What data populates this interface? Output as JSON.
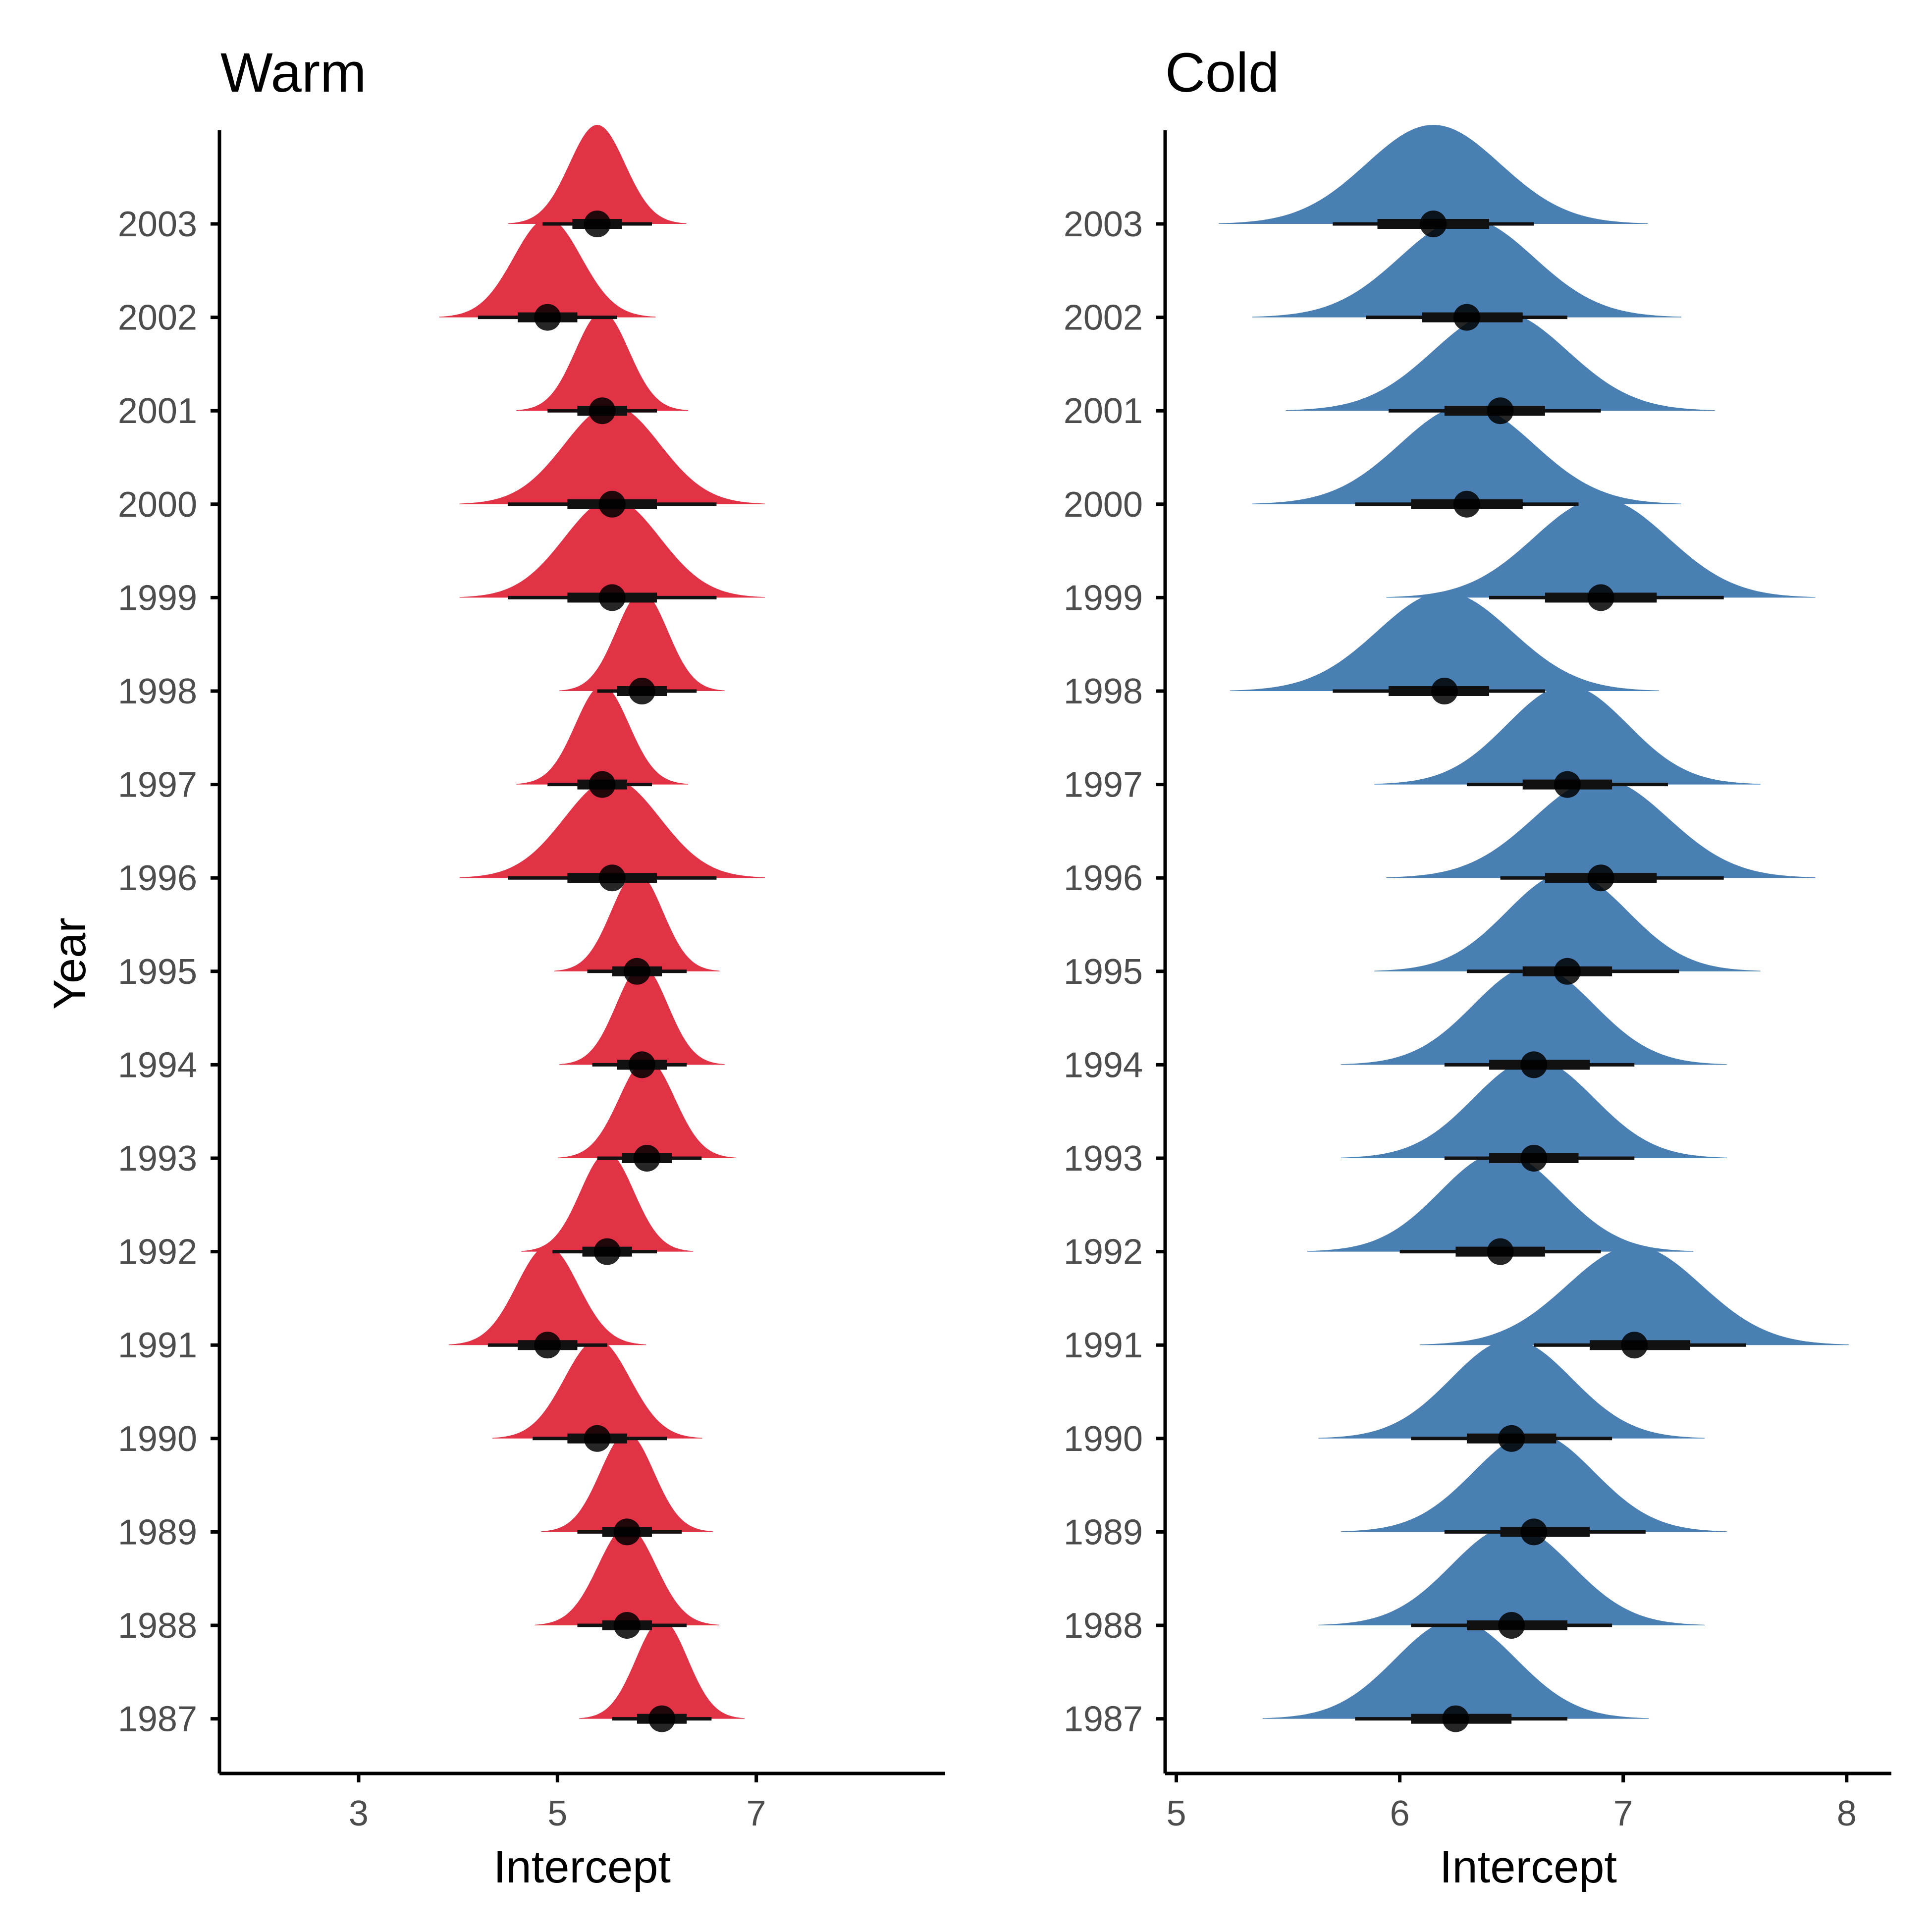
{
  "chart_data": [
    {
      "type": "halfeye",
      "title": "Warm",
      "xlabel": "Intercept",
      "ylabel": "Year",
      "xlim": [
        1.6,
        8.9
      ],
      "xticks": [
        "3",
        "5",
        "7"
      ],
      "categories": [
        "2003",
        "2002",
        "2001",
        "2000",
        "1999",
        "1998",
        "1997",
        "1996",
        "1995",
        "1994",
        "1993",
        "1992",
        "1991",
        "1990",
        "1989",
        "1988",
        "1987"
      ],
      "median": [
        5.4,
        4.9,
        5.45,
        5.55,
        5.55,
        5.85,
        5.45,
        5.55,
        5.8,
        5.85,
        5.9,
        5.5,
        4.9,
        5.4,
        5.7,
        5.7,
        6.05
      ],
      "interval_66": [
        [
          5.15,
          5.65
        ],
        [
          4.6,
          5.2
        ],
        [
          5.2,
          5.7
        ],
        [
          5.1,
          6.0
        ],
        [
          5.1,
          6.0
        ],
        [
          5.6,
          6.1
        ],
        [
          5.2,
          5.7
        ],
        [
          5.1,
          6.0
        ],
        [
          5.55,
          6.05
        ],
        [
          5.6,
          6.1
        ],
        [
          5.65,
          6.15
        ],
        [
          5.25,
          5.75
        ],
        [
          4.6,
          5.2
        ],
        [
          5.1,
          5.7
        ],
        [
          5.45,
          5.95
        ],
        [
          5.45,
          5.95
        ],
        [
          5.8,
          6.3
        ]
      ],
      "interval_95": [
        [
          4.85,
          5.95
        ],
        [
          4.2,
          5.6
        ],
        [
          4.9,
          6.0
        ],
        [
          4.5,
          6.6
        ],
        [
          4.5,
          6.6
        ],
        [
          5.4,
          6.4
        ],
        [
          4.9,
          5.95
        ],
        [
          4.5,
          6.6
        ],
        [
          5.3,
          6.3
        ],
        [
          5.35,
          6.3
        ],
        [
          5.4,
          6.45
        ],
        [
          4.95,
          6.0
        ],
        [
          4.3,
          5.5
        ],
        [
          4.75,
          6.1
        ],
        [
          5.2,
          6.25
        ],
        [
          5.2,
          6.3
        ],
        [
          5.55,
          6.55
        ]
      ],
      "density_sd": [
        0.28,
        0.34,
        0.27,
        0.48,
        0.48,
        0.26,
        0.27,
        0.48,
        0.26,
        0.26,
        0.28,
        0.27,
        0.31,
        0.33,
        0.27,
        0.29,
        0.26
      ],
      "color": "#e23246"
    },
    {
      "type": "halfeye",
      "title": "Cold",
      "xlabel": "Intercept",
      "ylabel": "Year",
      "xlim": [
        4.95,
        8.2
      ],
      "xticks": [
        "5",
        "6",
        "7",
        "8"
      ],
      "categories": [
        "2003",
        "2002",
        "2001",
        "2000",
        "1999",
        "1998",
        "1997",
        "1996",
        "1995",
        "1994",
        "1993",
        "1992",
        "1991",
        "1990",
        "1989",
        "1988",
        "1987"
      ],
      "median": [
        6.15,
        6.3,
        6.45,
        6.3,
        6.9,
        6.2,
        6.75,
        6.9,
        6.75,
        6.6,
        6.6,
        6.45,
        7.05,
        6.5,
        6.6,
        6.5,
        6.25
      ],
      "interval_66": [
        [
          5.9,
          6.4
        ],
        [
          6.1,
          6.55
        ],
        [
          6.2,
          6.65
        ],
        [
          6.05,
          6.55
        ],
        [
          6.65,
          7.15
        ],
        [
          5.95,
          6.4
        ],
        [
          6.55,
          6.95
        ],
        [
          6.65,
          7.15
        ],
        [
          6.55,
          6.95
        ],
        [
          6.4,
          6.85
        ],
        [
          6.4,
          6.8
        ],
        [
          6.25,
          6.65
        ],
        [
          6.85,
          7.3
        ],
        [
          6.3,
          6.7
        ],
        [
          6.45,
          6.85
        ],
        [
          6.3,
          6.75
        ],
        [
          6.05,
          6.5
        ]
      ],
      "interval_95": [
        [
          5.7,
          6.6
        ],
        [
          5.85,
          6.75
        ],
        [
          5.95,
          6.9
        ],
        [
          5.8,
          6.8
        ],
        [
          6.4,
          7.45
        ],
        [
          5.7,
          6.65
        ],
        [
          6.3,
          7.2
        ],
        [
          6.45,
          7.45
        ],
        [
          6.3,
          7.25
        ],
        [
          6.2,
          7.05
        ],
        [
          6.2,
          7.05
        ],
        [
          6.0,
          6.9
        ],
        [
          6.6,
          7.55
        ],
        [
          6.05,
          6.95
        ],
        [
          6.2,
          7.1
        ],
        [
          6.05,
          6.95
        ],
        [
          5.8,
          6.75
        ]
      ],
      "density_sd": [
        0.3,
        0.3,
        0.3,
        0.3,
        0.3,
        0.3,
        0.27,
        0.3,
        0.27,
        0.27,
        0.27,
        0.27,
        0.3,
        0.27,
        0.27,
        0.27,
        0.27
      ],
      "color": "#4a7fb4"
    }
  ]
}
